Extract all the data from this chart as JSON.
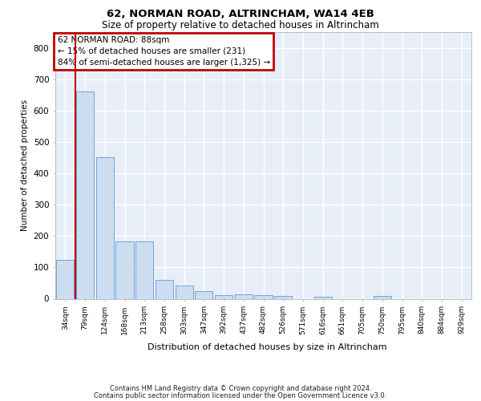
{
  "title1": "62, NORMAN ROAD, ALTRINCHAM, WA14 4EB",
  "title2": "Size of property relative to detached houses in Altrincham",
  "xlabel": "Distribution of detached houses by size in Altrincham",
  "ylabel": "Number of detached properties",
  "categories": [
    "34sqm",
    "79sqm",
    "124sqm",
    "168sqm",
    "213sqm",
    "258sqm",
    "303sqm",
    "347sqm",
    "392sqm",
    "437sqm",
    "482sqm",
    "526sqm",
    "571sqm",
    "616sqm",
    "661sqm",
    "705sqm",
    "750sqm",
    "795sqm",
    "840sqm",
    "884sqm",
    "929sqm"
  ],
  "values": [
    125,
    660,
    452,
    183,
    183,
    60,
    42,
    24,
    12,
    13,
    11,
    10,
    0,
    7,
    0,
    0,
    8,
    0,
    0,
    0,
    0
  ],
  "bar_color": "#ccddf0",
  "bar_edge_color": "#5b9bd5",
  "red_line_x": 0.5,
  "highlight_color": "#c00000",
  "annotation_text": "62 NORMAN ROAD: 88sqm\n← 15% of detached houses are smaller (231)\n84% of semi-detached houses are larger (1,325) →",
  "ylim_max": 850,
  "yticks": [
    0,
    100,
    200,
    300,
    400,
    500,
    600,
    700,
    800
  ],
  "bg_color": "#e8eef8",
  "grid_color": "#ffffff",
  "footer_line1": "Contains HM Land Registry data © Crown copyright and database right 2024.",
  "footer_line2": "Contains public sector information licensed under the Open Government Licence v3.0."
}
